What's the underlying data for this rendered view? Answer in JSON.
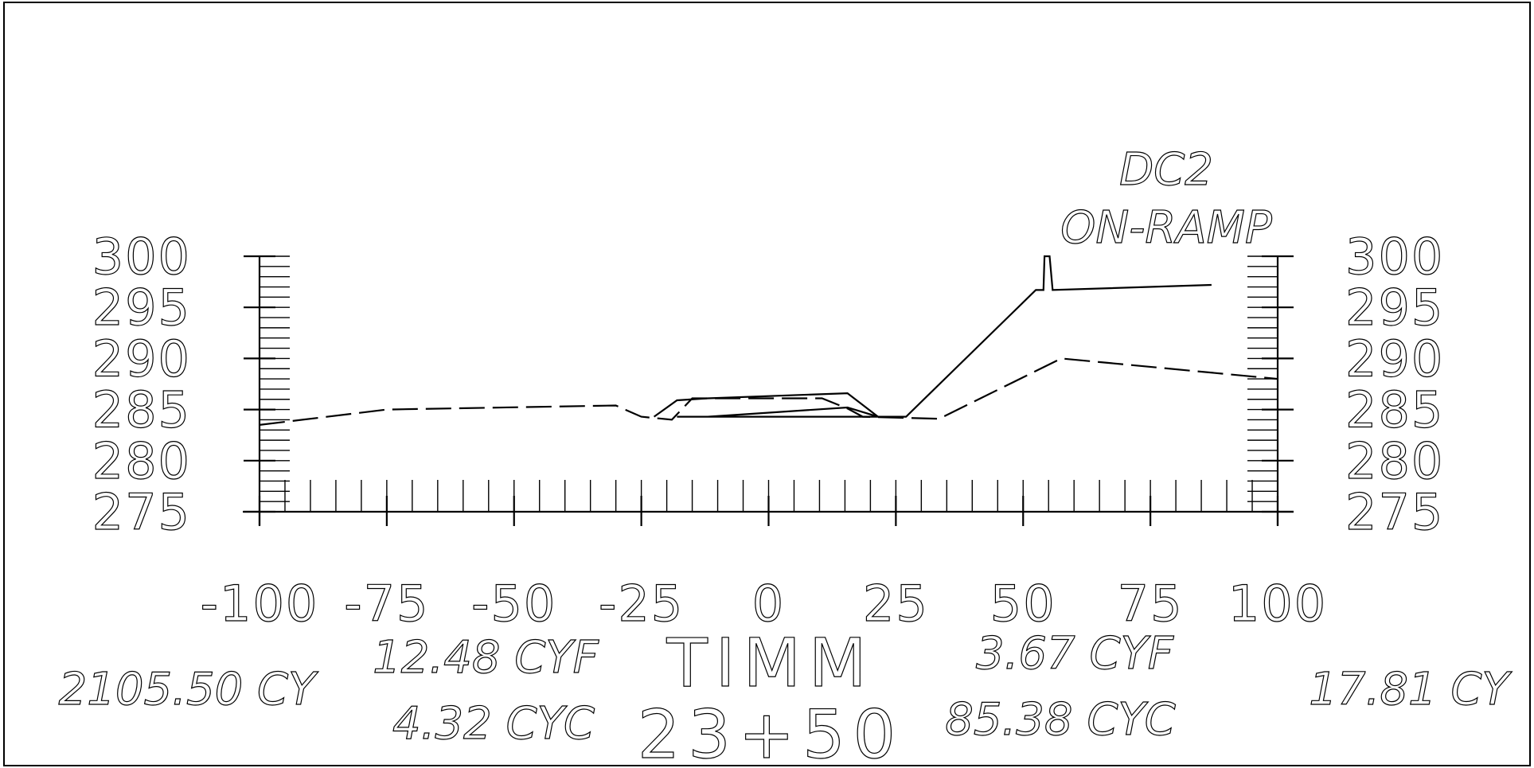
{
  "header": {
    "label_line1": "DC2",
    "label_line2": "ON-RAMP"
  },
  "footer": {
    "left_volume": "2105.50 CY",
    "fill_left": "12.48 CYF",
    "cut_left": "4.32 CYC",
    "title": "TIMM",
    "station": "23+50",
    "fill_right": "3.67 CYF",
    "cut_right": "85.38 CYC",
    "right_volume": "17.81 CY"
  },
  "chart_data": {
    "type": "line",
    "title": "",
    "xlabel": "",
    "ylabel": "",
    "xlim": [
      -100,
      100
    ],
    "ylim": [
      275,
      300
    ],
    "x_ticks": [
      -100,
      -75,
      -50,
      -25,
      0,
      25,
      50,
      75,
      100
    ],
    "x_tick_labels": [
      "-100",
      "-75",
      "-50",
      "-25",
      "0",
      "25",
      "50",
      "75",
      "100"
    ],
    "y_ticks": [
      300,
      295,
      290,
      285,
      280,
      275
    ],
    "y_tick_labels": [
      "300",
      "295",
      "290",
      "285",
      "280",
      "275"
    ],
    "grid": false,
    "series": [
      {
        "style": "solid",
        "points": [
          [
            -22.5,
            284.3
          ],
          [
            -18,
            285.9
          ],
          [
            -12,
            286.1
          ],
          [
            15.5,
            286.6
          ],
          [
            21.5,
            284.3
          ],
          [
            -18,
            284.3
          ],
          [
            -12,
            284.3
          ],
          [
            15.5,
            285.2
          ],
          [
            21.5,
            284.3
          ],
          [
            27,
            284.3
          ],
          [
            52.5,
            296.7
          ],
          [
            54,
            296.7
          ],
          [
            54.2,
            300
          ],
          [
            55.2,
            300
          ],
          [
            55.8,
            296.7
          ],
          [
            87,
            297.2
          ]
        ]
      },
      {
        "style": "dashed",
        "points": [
          [
            -100,
            283.5
          ],
          [
            -75,
            285
          ],
          [
            -30,
            285.4
          ],
          [
            -25,
            284.3
          ],
          [
            -19,
            284
          ],
          [
            -15,
            286.1
          ],
          [
            -11.5,
            286.1
          ],
          [
            10.5,
            286.1
          ],
          [
            15.5,
            285.1
          ],
          [
            18.5,
            284.3
          ],
          [
            33.5,
            284.1
          ],
          [
            57.5,
            290
          ],
          [
            100,
            288
          ]
        ]
      }
    ]
  }
}
